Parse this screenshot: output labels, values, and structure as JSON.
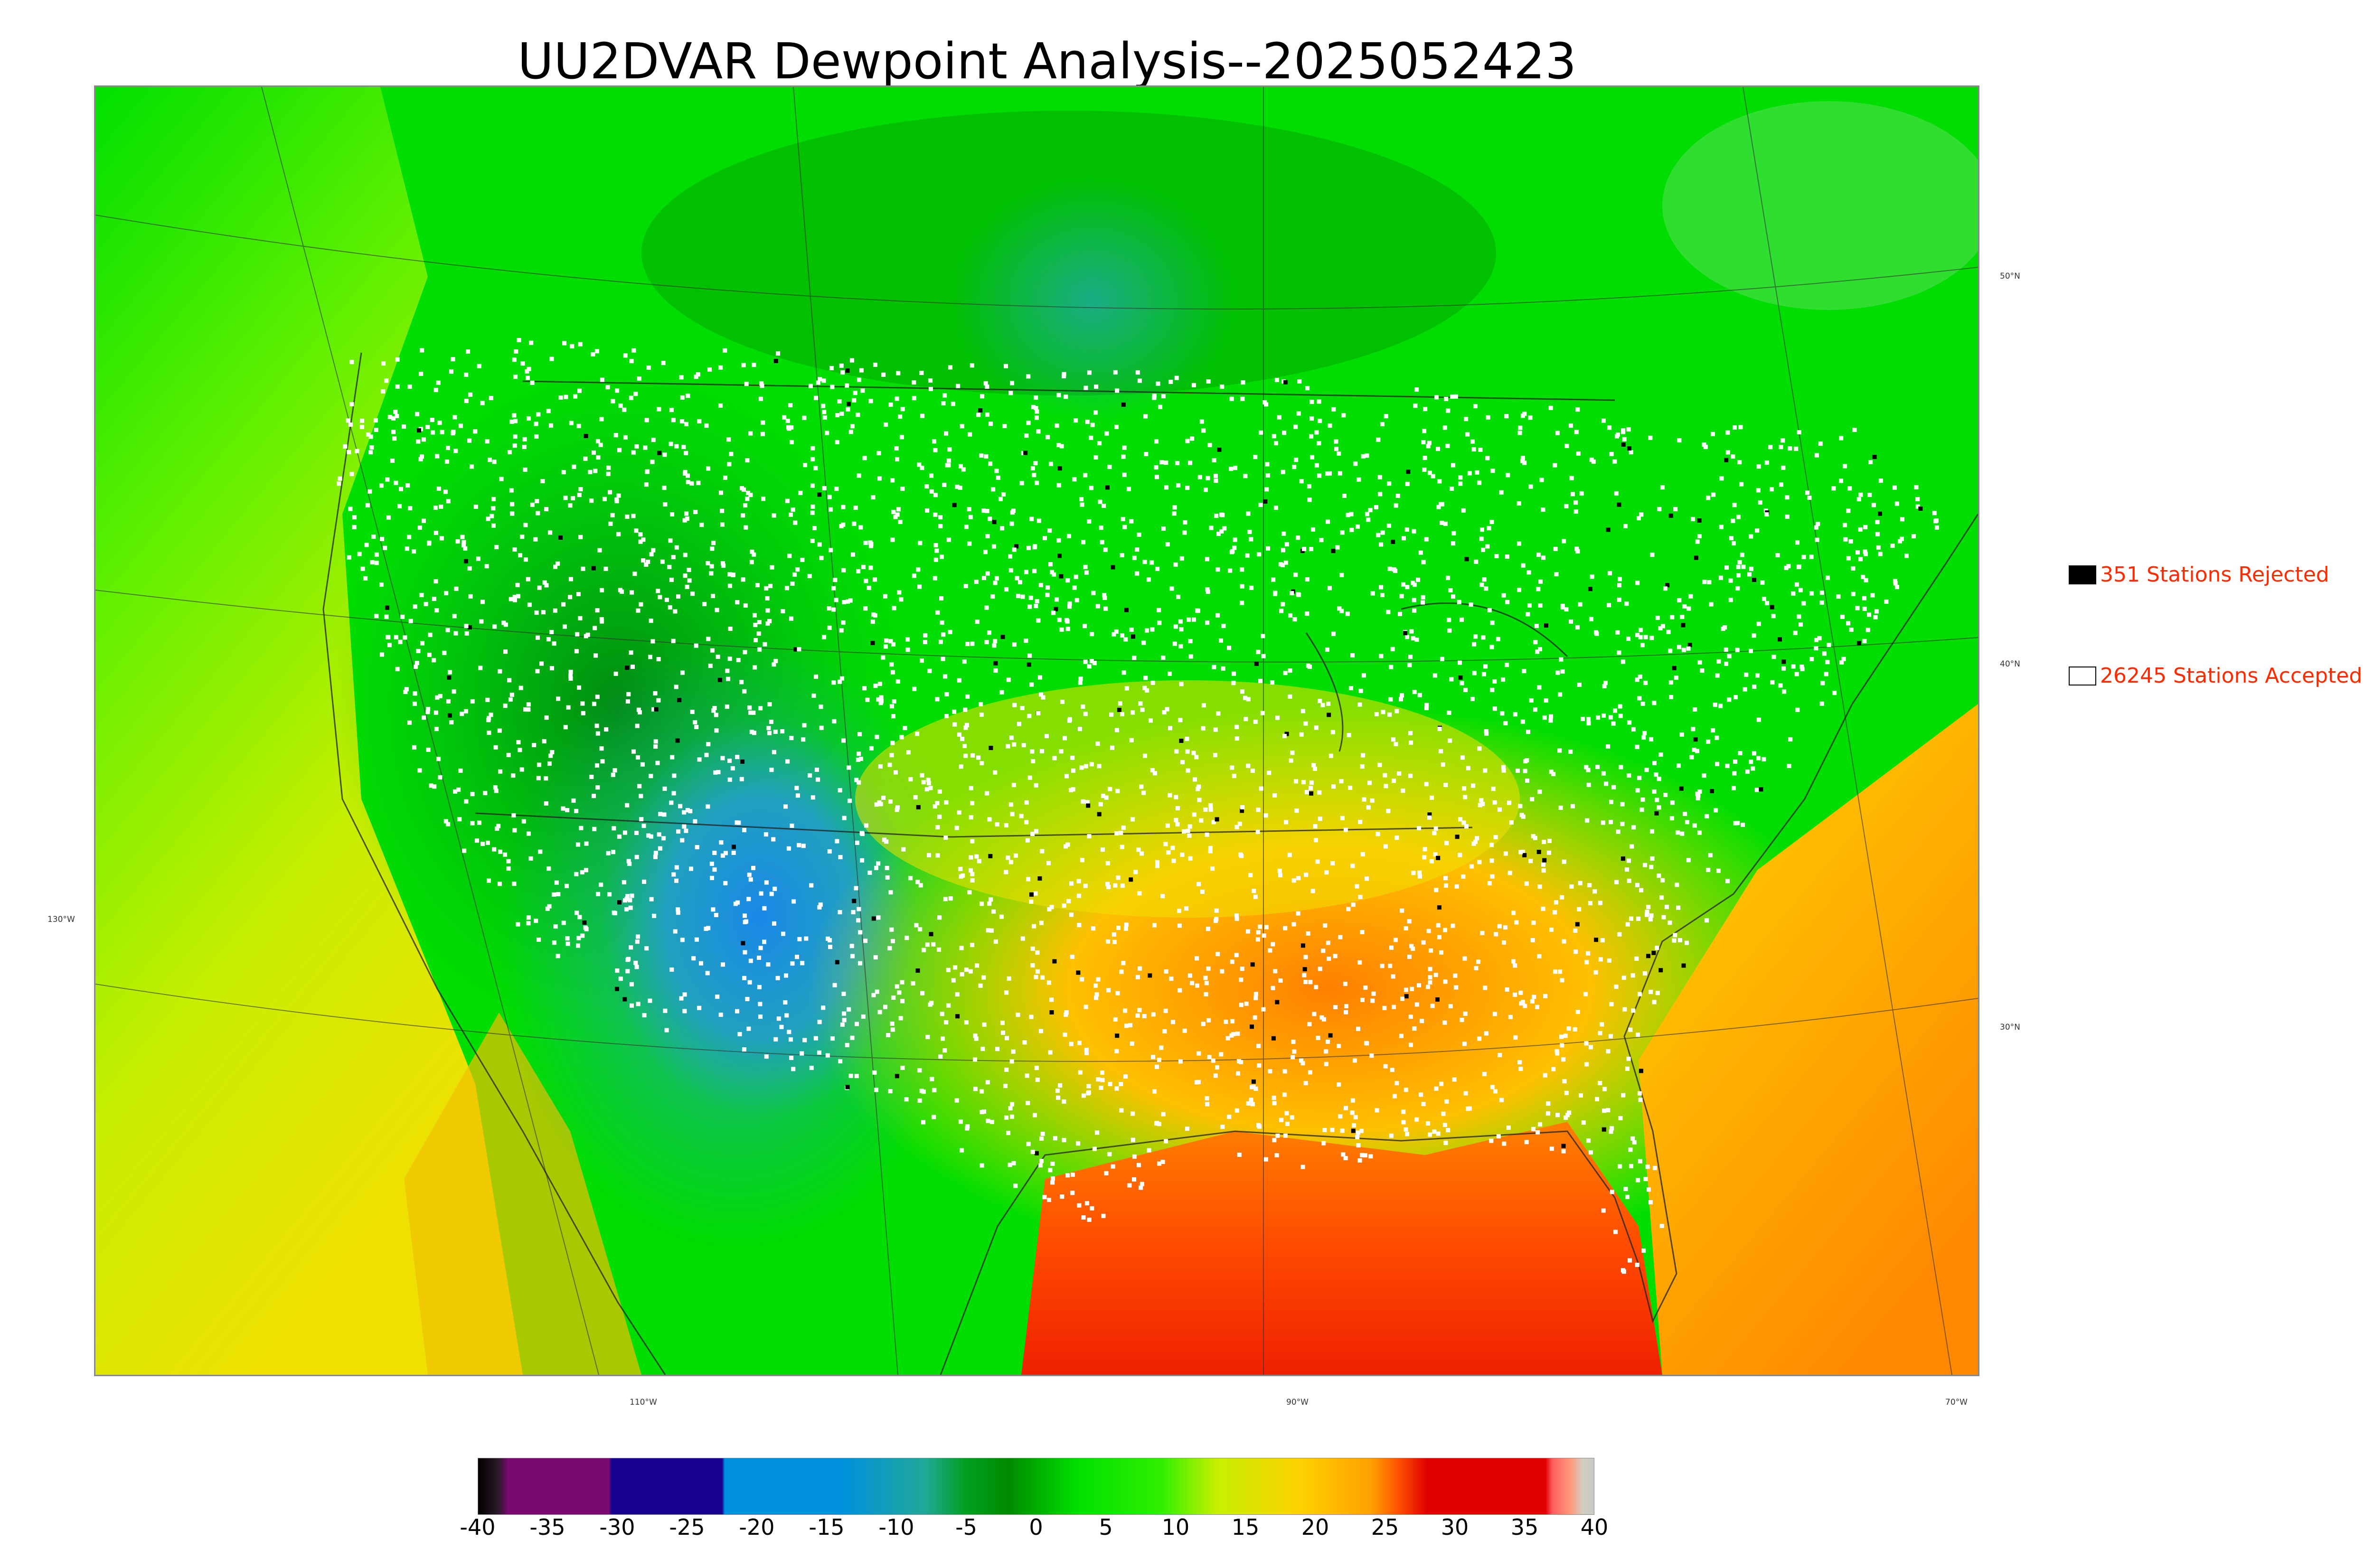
{
  "title": "UU2DVAR Dewpoint Analysis--2025052423",
  "legend": {
    "rejected": {
      "label": "351 Stations Rejected",
      "color": "#000000"
    },
    "accepted": {
      "label": "26245 Stations Accepted",
      "color": "#ffffff"
    }
  },
  "axes": {
    "lon_ticks": [
      "110°W",
      "90°W",
      "70°W"
    ],
    "lat_ticks": [
      "50°N",
      "40°N",
      "30°N"
    ],
    "side_lon_tick": "130°W"
  },
  "colorbar": {
    "labels": [
      "-40",
      "-35",
      "-30",
      "-25",
      "-20",
      "-15",
      "-10",
      "-5",
      "0",
      "5",
      "10",
      "15",
      "20",
      "25",
      "30",
      "35",
      "40"
    ],
    "min": -40,
    "max": 40,
    "stops": [
      {
        "v": -40,
        "c": "#000000"
      },
      {
        "v": -38.5,
        "c": "#2a1a2a"
      },
      {
        "v": -37.8,
        "c": "#7a0a70"
      },
      {
        "v": -30.6,
        "c": "#7a0a70"
      },
      {
        "v": -30.4,
        "c": "#150090"
      },
      {
        "v": -22.5,
        "c": "#150090"
      },
      {
        "v": -22.3,
        "c": "#0090e0"
      },
      {
        "v": -14,
        "c": "#0090e0"
      },
      {
        "v": -8,
        "c": "#20a89a"
      },
      {
        "v": -5,
        "c": "#00a020"
      },
      {
        "v": -2,
        "c": "#008a00"
      },
      {
        "v": 3,
        "c": "#00e000"
      },
      {
        "v": 9,
        "c": "#30f000"
      },
      {
        "v": 13,
        "c": "#c8f000"
      },
      {
        "v": 19,
        "c": "#ffd000"
      },
      {
        "v": 24,
        "c": "#ffa000"
      },
      {
        "v": 26,
        "c": "#ff5000"
      },
      {
        "v": 28,
        "c": "#e00000"
      },
      {
        "v": 36.5,
        "c": "#e00000"
      },
      {
        "v": 37,
        "c": "#ff6060"
      },
      {
        "v": 38.3,
        "c": "#ff9a7a"
      },
      {
        "v": 39.2,
        "c": "#d0d0c0"
      },
      {
        "v": 40,
        "c": "#c8c8c8"
      }
    ]
  },
  "map_colors": {
    "green": "#00dd00",
    "dark_green": "#009a10",
    "teal": "#20a8a0",
    "blue": "#1a8ae0",
    "yellow_green": "#c8ee00",
    "yellow": "#f0e000",
    "orange": "#ffa000",
    "red": "#f03000"
  }
}
